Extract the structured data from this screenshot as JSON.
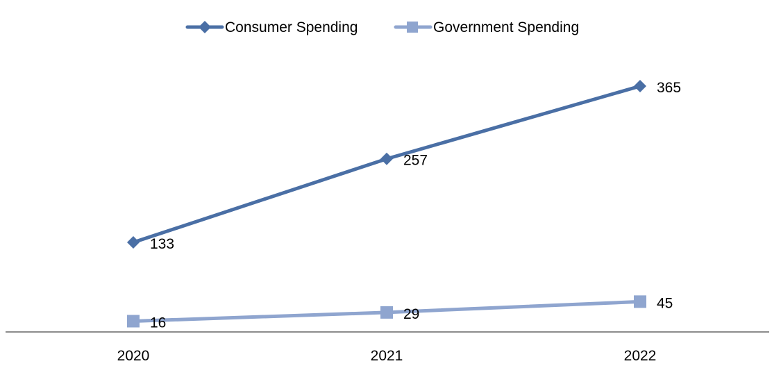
{
  "chart_data": {
    "type": "line",
    "title": "",
    "xlabel": "",
    "ylabel": "",
    "categories": [
      "2020",
      "2021",
      "2022"
    ],
    "ylim": [
      0,
      365
    ],
    "grid": false,
    "legend_position": "top-center",
    "series": [
      {
        "name": "Consumer Spending",
        "values": [
          133,
          257,
          365
        ],
        "labels": [
          "133",
          "257",
          "365"
        ],
        "color": "#4A6FA5",
        "marker": "diamond"
      },
      {
        "name": "Government Spending",
        "values": [
          16,
          29,
          45
        ],
        "labels": [
          "16",
          "29",
          "45"
        ],
        "color": "#8FA5CF",
        "marker": "square"
      }
    ]
  }
}
